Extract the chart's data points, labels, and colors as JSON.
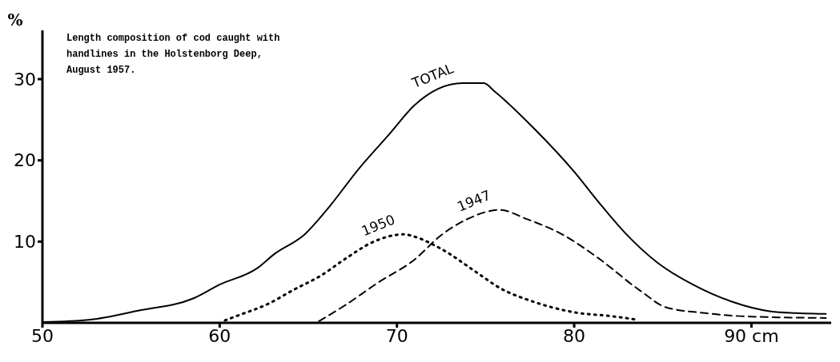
{
  "chart_data": {
    "type": "line",
    "title": "Length composition of cod caught with\nhandlines in the Holstenborg Deep,\nAugust 1957.",
    "ylabel": "%",
    "xlim": [
      50,
      94.5
    ],
    "xticks": [
      50,
      60,
      70,
      80,
      {
        "value": 90,
        "label": "90 cm"
      }
    ],
    "ylim": [
      0,
      36
    ],
    "yticks": [
      10,
      20,
      30
    ],
    "grid": false,
    "legend": false,
    "marker": "none",
    "series": [
      {
        "name": "TOTAL",
        "color": "#000000",
        "line_style": "solid",
        "x": [
          50,
          52.7,
          55.4,
          58.5,
          60,
          62.1,
          63.1,
          64.8,
          66,
          67.9,
          69.6,
          71,
          73.7,
          74.9,
          75.5,
          77.7,
          80,
          81.4,
          82.9,
          84.7,
          86.7,
          88.9,
          91.1,
          92.5,
          94.2
        ],
        "values": [
          0.1,
          0.4,
          1.5,
          3,
          4.7,
          6.7,
          8.5,
          10.9,
          13.8,
          19.1,
          23.3,
          26.8,
          29.5,
          29.5,
          28.5,
          24,
          18.6,
          14.8,
          11,
          7.4,
          4.7,
          2.6,
          1.4,
          1.2,
          1.1
        ]
      },
      {
        "name": "1950",
        "color": "#000000",
        "line_style": "dotted",
        "x": [
          60.3,
          60.9,
          62.7,
          64.2,
          65.7,
          67.1,
          68.7,
          70.4,
          71,
          72.5,
          74.5,
          75.8,
          77.7,
          80,
          82.2,
          83.5
        ],
        "values": [
          0.3,
          0.8,
          2.3,
          4.1,
          5.8,
          7.9,
          10,
          10.9,
          10.6,
          9.1,
          6.2,
          4.3,
          2.6,
          1.3,
          0.8,
          0.4
        ]
      },
      {
        "name": "1947",
        "color": "#000000",
        "line_style": "dashed",
        "x": [
          65.6,
          67.1,
          68.9,
          71,
          72.5,
          74,
          75.8,
          77.3,
          79.4,
          81.4,
          83.7,
          85.2,
          87.4,
          89.6,
          94.2
        ],
        "values": [
          0.2,
          2.2,
          4.9,
          7.8,
          10.8,
          12.8,
          13.9,
          12.8,
          10.8,
          7.9,
          4,
          1.9,
          1.2,
          0.8,
          0.6
        ]
      }
    ]
  }
}
